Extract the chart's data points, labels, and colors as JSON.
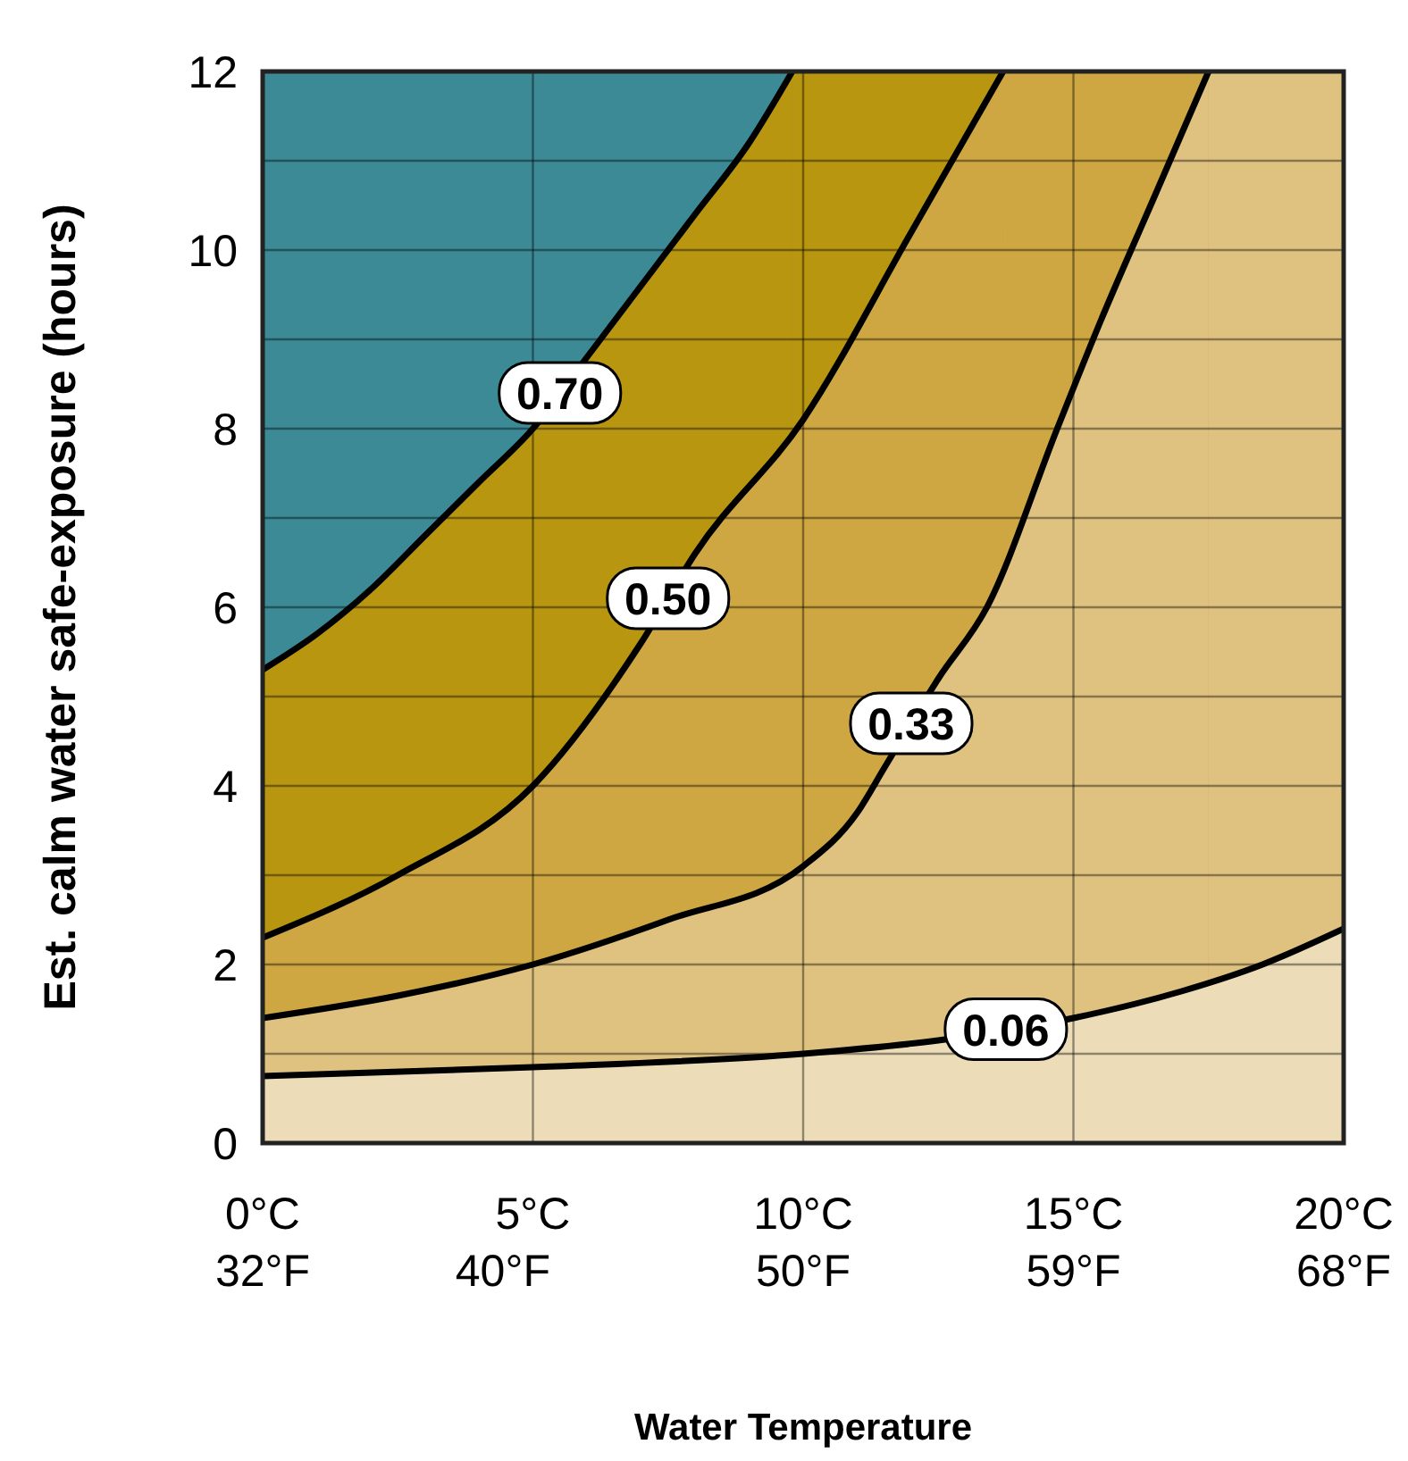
{
  "chart_data": {
    "type": "area",
    "xlabel": "Water Temperature",
    "ylabel": "Est. calm water safe-exposure (hours)",
    "xlim": [
      0,
      20
    ],
    "ylim": [
      0,
      12
    ],
    "xticks": [
      {
        "value": 0,
        "label": "0°C"
      },
      {
        "value": 5,
        "label": "5°C"
      },
      {
        "value": 10,
        "label": "10°C"
      },
      {
        "value": 15,
        "label": "15°C"
      },
      {
        "value": 20,
        "label": "20°C"
      }
    ],
    "x2lim": [
      32,
      68
    ],
    "x2ticks": [
      {
        "value": 32,
        "label": "32°F"
      },
      {
        "value": 40,
        "label": "40°F"
      },
      {
        "value": 50,
        "label": "50°F"
      },
      {
        "value": 59,
        "label": "59°F"
      },
      {
        "value": 68,
        "label": "68°F"
      }
    ],
    "yticks": [
      0,
      {
        "value": 1,
        "label": null
      },
      2,
      {
        "value": 3,
        "label": null
      },
      4,
      {
        "value": 5,
        "label": null
      },
      6,
      {
        "value": 7,
        "label": null
      },
      8,
      {
        "value": 9,
        "label": null
      },
      10,
      {
        "value": 11,
        "label": null
      },
      12
    ],
    "grid": true,
    "bands": [
      {
        "axis": "y",
        "from": 5.3,
        "to": 12,
        "color": "#3b8a96"
      },
      {
        "axis": "x",
        "from": 9.8,
        "to": 20,
        "color": "#b8960f"
      },
      {
        "axis": "x",
        "from": 13.7,
        "to": 20,
        "color": "#cfa742"
      },
      {
        "axis": "x",
        "from": 17.5,
        "to": 20,
        "color": "#dfc27f"
      }
    ],
    "series": [
      {
        "name": "0.70",
        "color": "#b8960f",
        "x": [
          0,
          1,
          2,
          3,
          4,
          5,
          6,
          7,
          8,
          9,
          9.8
        ],
        "values": [
          5.3,
          5.7,
          6.2,
          6.8,
          7.4,
          8,
          8.8,
          9.6,
          10.4,
          11.2,
          12
        ]
      },
      {
        "name": "0.50",
        "color": "#cfa742",
        "x": [
          0,
          2.5,
          5,
          7,
          8,
          10,
          12,
          13.7
        ],
        "values": [
          2.3,
          3,
          4,
          5.6,
          6.6,
          8.1,
          10.2,
          12
        ]
      },
      {
        "name": "0.33",
        "color": "#dfc27f",
        "x": [
          0,
          2.5,
          5,
          7.5,
          10,
          11,
          11.5,
          12.5,
          13.4,
          14.7,
          15.5,
          16.5,
          17.5
        ],
        "values": [
          1.4,
          1.65,
          2,
          2.5,
          3.1,
          3.7,
          4.2,
          5.2,
          6,
          8,
          9.2,
          10.6,
          12
        ]
      },
      {
        "name": "0.06",
        "color": "#ecdcb7",
        "x": [
          0,
          5,
          10,
          12.5,
          15,
          17,
          18.5,
          20
        ],
        "values": [
          0.75,
          0.85,
          1,
          1.15,
          1.4,
          1.7,
          2,
          2.4
        ]
      }
    ]
  }
}
